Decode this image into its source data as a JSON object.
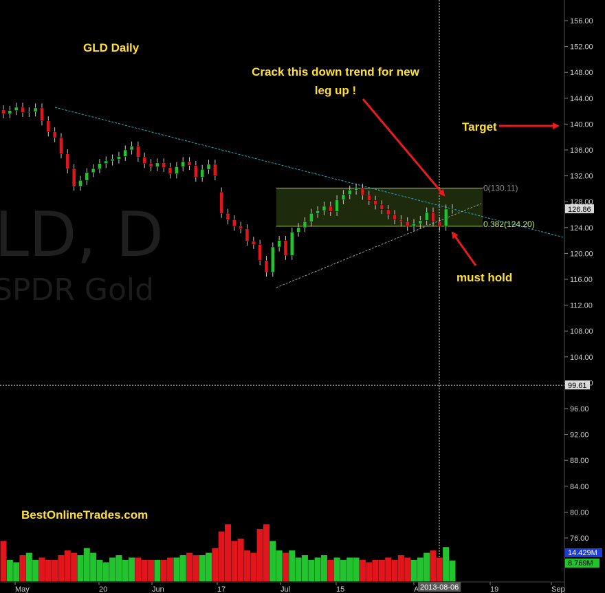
{
  "watermark": {
    "symbol_text": "LD, D",
    "name_text": "SPDR Gold"
  },
  "annotations": {
    "title": "GLD Daily",
    "trend_note": "Crack this down trend for new leg up !",
    "target_label": "Target",
    "hold_label": "must hold",
    "site": "BestOnlineTrades.com",
    "fib_top": "0(130.11)",
    "fib_bottom": "0.382(124.20)"
  },
  "price_axis": {
    "ticks": [
      "156.00",
      "152.00",
      "148.00",
      "144.00",
      "140.00",
      "136.00",
      "132.00",
      "128.00",
      "124.00",
      "120.00",
      "116.00",
      "112.00",
      "108.00",
      "104.00",
      "100.00",
      "96.00",
      "92.00",
      "88.00",
      "84.00",
      "80.00",
      "76.00"
    ],
    "last_price_label": "126.86",
    "crosshair_price_label": "99.61",
    "volume_label_blue": "14.429M",
    "volume_label_green": "8.769M"
  },
  "time_axis": {
    "ticks": [
      "May",
      "20",
      "Jun",
      "17",
      "Jul",
      "15",
      "A",
      "19",
      "Sep"
    ],
    "crosshair_date_label": "2013-08-06"
  },
  "colors": {
    "up": "#22c32e",
    "down": "#e0161c",
    "trendline": "#1fb3c6",
    "fib_zone": "#1d2a0b",
    "fib_line": "#c8ef72",
    "annotation": "#ffe033",
    "arrow": "#e81c1c"
  },
  "chart_data": {
    "type": "candlestick",
    "title": "GLD Daily",
    "xlabel": "",
    "ylabel": "",
    "ylim": [
      72,
      158
    ],
    "dates": [
      "04-29",
      "04-30",
      "05-01",
      "05-02",
      "05-03",
      "05-06",
      "05-07",
      "05-08",
      "05-09",
      "05-10",
      "05-13",
      "05-14",
      "05-15",
      "05-16",
      "05-17",
      "05-20",
      "05-21",
      "05-22",
      "05-23",
      "05-24",
      "05-28",
      "05-29",
      "05-30",
      "05-31",
      "06-03",
      "06-04",
      "06-05",
      "06-06",
      "06-07",
      "06-10",
      "06-11",
      "06-12",
      "06-13",
      "06-14",
      "06-17",
      "06-18",
      "06-19",
      "06-20",
      "06-21",
      "06-24",
      "06-25",
      "06-26",
      "06-27",
      "06-28",
      "07-01",
      "07-02",
      "07-03",
      "07-05",
      "07-08",
      "07-09",
      "07-10",
      "07-11",
      "07-12",
      "07-15",
      "07-16",
      "07-17",
      "07-18",
      "07-19",
      "07-22",
      "07-23",
      "07-24",
      "07-25",
      "07-26",
      "07-29",
      "07-30",
      "07-31",
      "08-01",
      "08-02",
      "08-05",
      "08-06",
      "08-07"
    ],
    "open": [
      142.2,
      141.6,
      142.1,
      142.6,
      141.8,
      141.9,
      142.5,
      140.5,
      138.8,
      137.9,
      135.4,
      133.1,
      130.4,
      131.3,
      132.5,
      133.1,
      133.9,
      134.3,
      134.6,
      135.0,
      136.0,
      136.6,
      134.9,
      133.9,
      133.4,
      134.0,
      133.3,
      132.3,
      133.4,
      134.2,
      133.6,
      131.8,
      133.0,
      133.8,
      129.5,
      126.2,
      125.2,
      124.2,
      123.8,
      121.9,
      121.4,
      118.9,
      117.1,
      121.0,
      122.0,
      119.7,
      123.3,
      124.0,
      124.9,
      126.2,
      126.6,
      127.3,
      126.5,
      128.3,
      129.1,
      129.8,
      130.1,
      129.0,
      128.2,
      127.5,
      126.8,
      126.0,
      125.2,
      124.9,
      124.2,
      124.6,
      125.1,
      126.4,
      124.9,
      124.2,
      126.86
    ],
    "close": [
      141.6,
      142.1,
      142.6,
      141.8,
      141.9,
      142.5,
      140.5,
      138.8,
      137.9,
      135.4,
      133.1,
      130.4,
      131.3,
      132.5,
      133.1,
      133.9,
      134.3,
      134.6,
      135.0,
      136.0,
      136.6,
      134.9,
      133.9,
      133.4,
      134.0,
      133.3,
      132.3,
      133.4,
      134.2,
      133.6,
      131.8,
      133.0,
      133.8,
      132.0,
      126.2,
      125.2,
      124.2,
      123.8,
      121.9,
      121.4,
      118.9,
      117.1,
      121.0,
      122.0,
      119.7,
      123.3,
      124.0,
      124.9,
      126.2,
      126.6,
      127.3,
      126.5,
      128.3,
      129.1,
      129.8,
      130.1,
      129.0,
      128.2,
      127.5,
      126.8,
      126.0,
      125.2,
      124.9,
      124.2,
      124.6,
      125.1,
      126.4,
      124.9,
      124.2,
      126.86,
      126.9
    ],
    "volume_millions": [
      17,
      9,
      8,
      11,
      12,
      9,
      10,
      9,
      9,
      11,
      13,
      12,
      11,
      14,
      12,
      9,
      8,
      10,
      11,
      9,
      10,
      10,
      9,
      9,
      9,
      9,
      10,
      10,
      11,
      12,
      11,
      11,
      12,
      14,
      21,
      24,
      17,
      18,
      13,
      12,
      22,
      24,
      17,
      13,
      12,
      13,
      10,
      11,
      9,
      10,
      11,
      9,
      10,
      9,
      10,
      10,
      9,
      8,
      9,
      9,
      10,
      9,
      11,
      10,
      9,
      10,
      12,
      13,
      10,
      14.429,
      8.769
    ]
  }
}
